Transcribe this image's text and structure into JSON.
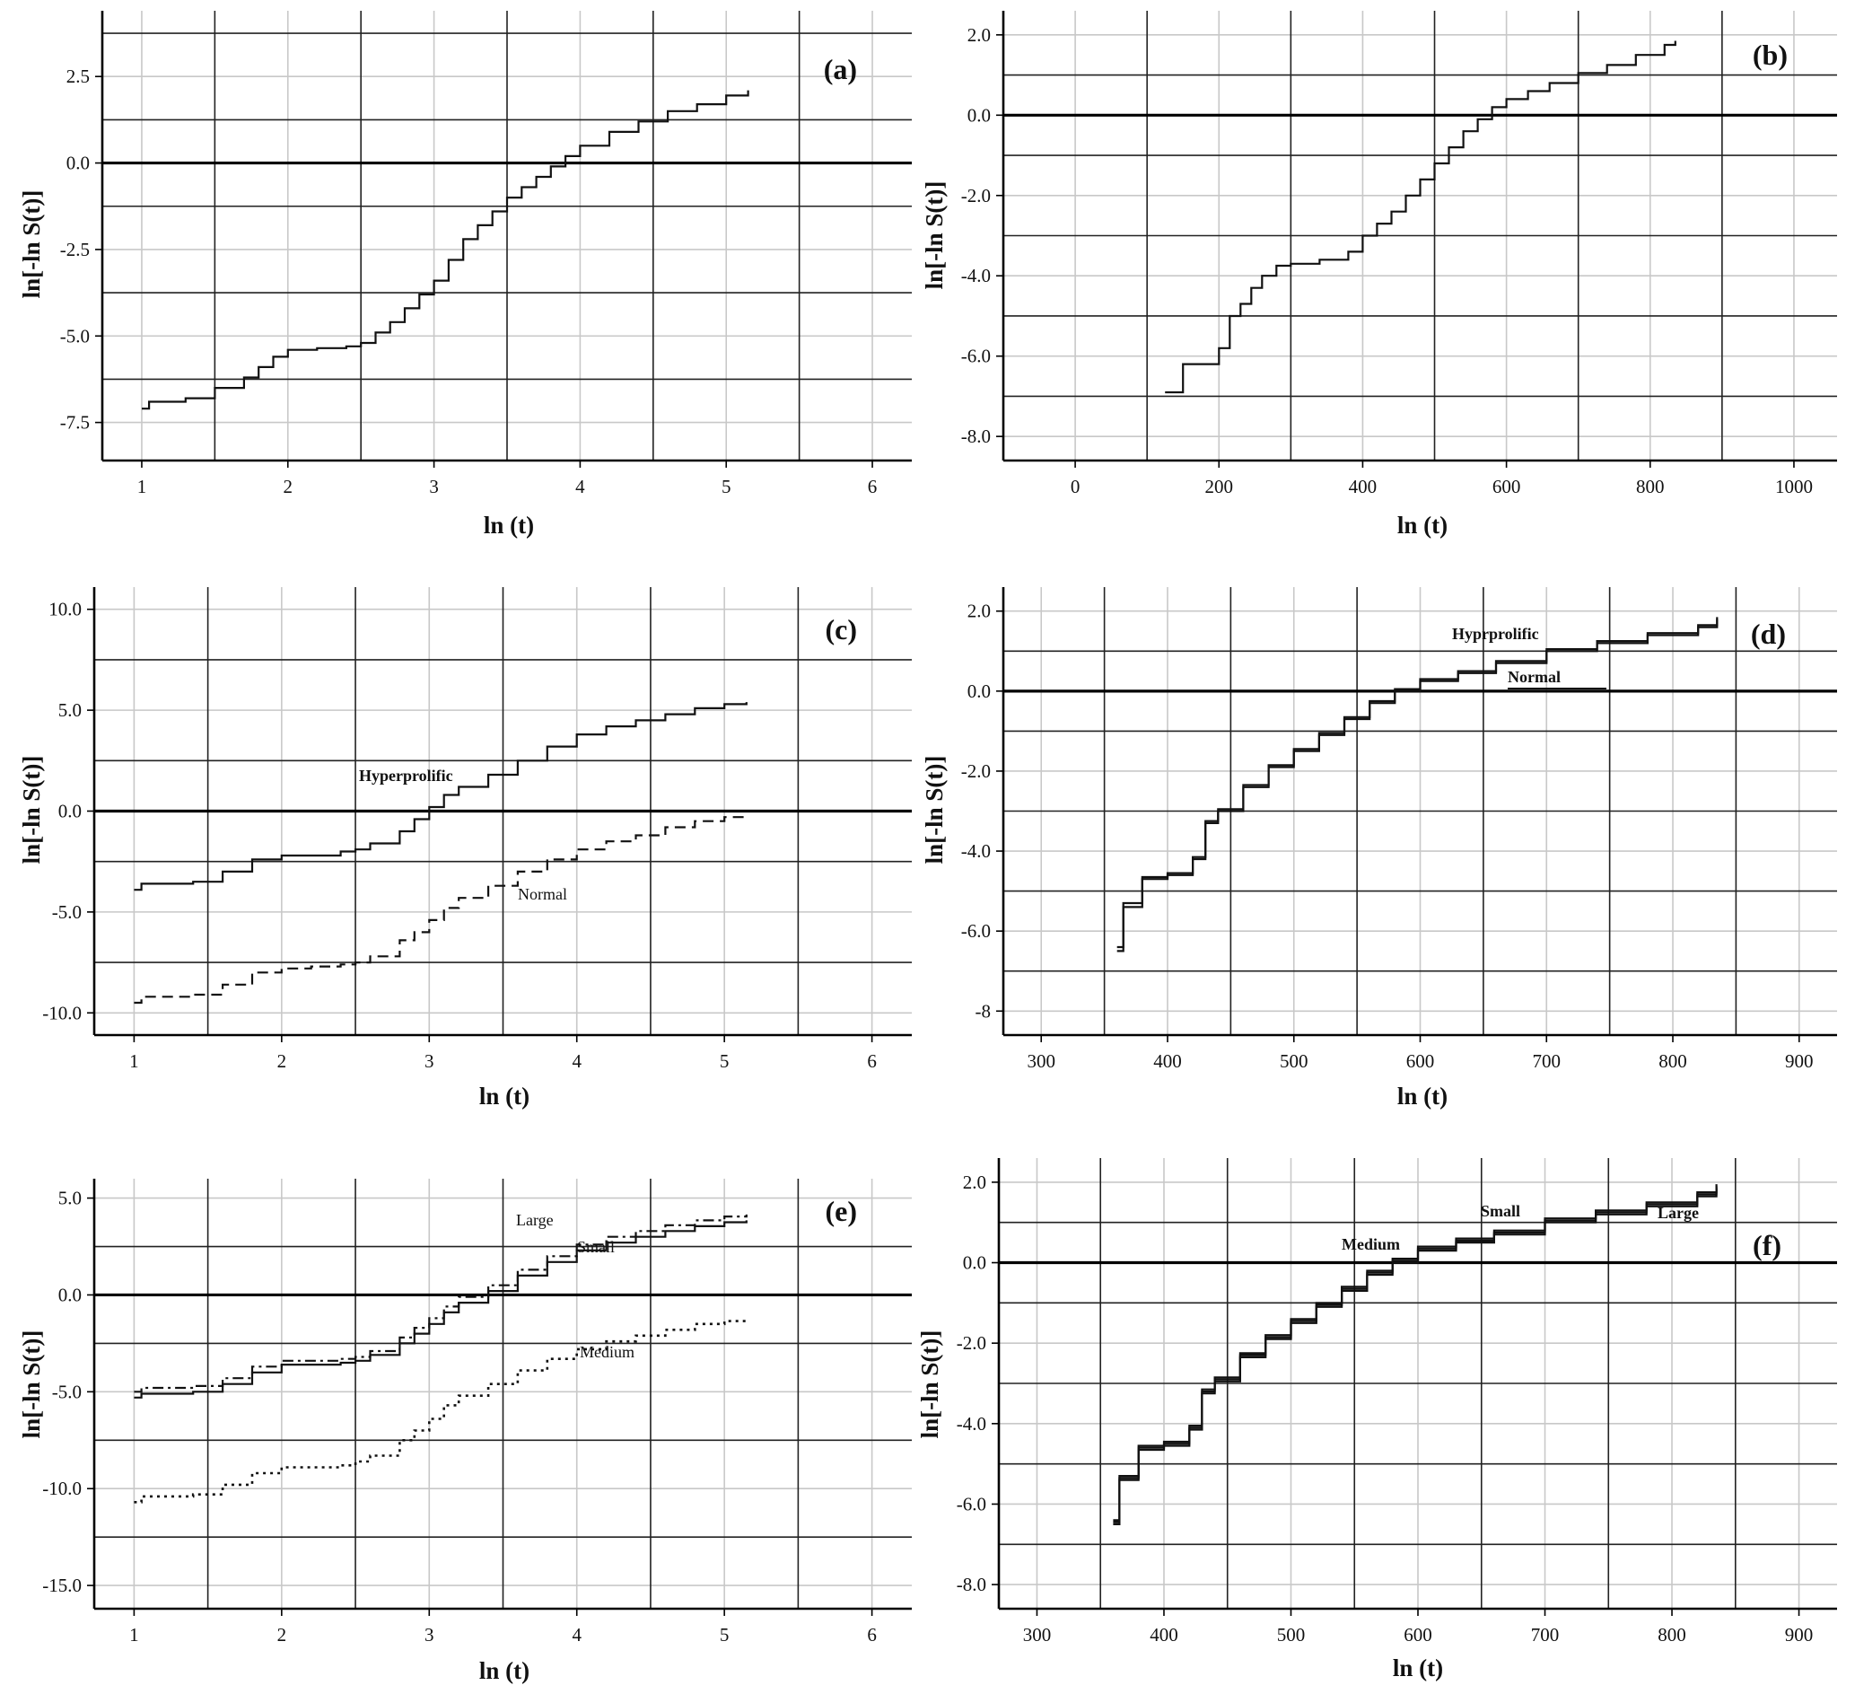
{
  "chart_data": [
    {
      "id": "a",
      "type": "line",
      "panel_label": "(a)",
      "xlabel": "ln (t)",
      "ylabel": "ln[-ln S(t)]",
      "xlim": [
        0.73,
        6.27
      ],
      "ylim": [
        -8.6,
        4.4
      ],
      "x_ticks": [
        1,
        2,
        3,
        4,
        5,
        6
      ],
      "y_ticks": [
        2.5,
        0.0,
        -2.5,
        -5.0,
        -7.5
      ],
      "y_tick_labels": [
        "2.5",
        "0.0",
        "-2.5",
        "-5.0",
        "-7.5"
      ],
      "x_grid_major": [
        1.5,
        2.5,
        3.5,
        4.5,
        5.5
      ],
      "x_grid_minor": [
        1,
        2,
        3,
        4,
        5,
        6
      ],
      "y_grid_major": [
        3.75,
        1.25,
        -1.25,
        -3.75,
        -6.25
      ],
      "y_grid_minor": [
        2.5,
        -2.5,
        -5.0,
        -7.5
      ],
      "zero_line": 0,
      "series": [
        {
          "style": "solid",
          "x": [
            1.0,
            1.05,
            1.3,
            1.5,
            1.7,
            1.8,
            1.9,
            2.0,
            2.2,
            2.4,
            2.5,
            2.6,
            2.7,
            2.8,
            2.9,
            3.0,
            3.1,
            3.2,
            3.3,
            3.4,
            3.5,
            3.6,
            3.7,
            3.8,
            3.9,
            4.0,
            4.2,
            4.4,
            4.6,
            4.8,
            5.0,
            5.15
          ],
          "y": [
            -7.1,
            -6.9,
            -6.8,
            -6.5,
            -6.2,
            -5.9,
            -5.6,
            -5.4,
            -5.35,
            -5.3,
            -5.2,
            -4.9,
            -4.6,
            -4.2,
            -3.8,
            -3.4,
            -2.8,
            -2.2,
            -1.8,
            -1.4,
            -1.0,
            -0.7,
            -0.4,
            -0.1,
            0.2,
            0.5,
            0.9,
            1.2,
            1.5,
            1.7,
            1.95,
            2.1
          ]
        }
      ]
    },
    {
      "id": "b",
      "type": "line",
      "panel_label": "(b)",
      "xlabel": "ln (t)",
      "ylabel": "ln[-ln S(t)]",
      "xlim": [
        -100,
        1060
      ],
      "ylim": [
        -8.6,
        2.6
      ],
      "x_ticks": [
        0,
        200,
        400,
        600,
        800,
        1000
      ],
      "y_ticks": [
        2.0,
        0.0,
        -2.0,
        -4.0,
        -6.0,
        -8.0
      ],
      "y_tick_labels": [
        "2.0",
        "0.0",
        "-2.0",
        "-4.0",
        "-6.0",
        "-8.0"
      ],
      "x_grid_major": [
        100,
        300,
        500,
        700,
        900
      ],
      "x_grid_minor": [
        0,
        200,
        400,
        600,
        800,
        1000
      ],
      "y_grid_major": [
        1.0,
        -1.0,
        -3.0,
        -5.0,
        -7.0
      ],
      "y_grid_minor": [
        2.0,
        -2.0,
        -4.0,
        -6.0,
        -8.0
      ],
      "zero_line": 0,
      "series": [
        {
          "style": "solid",
          "x": [
            125,
            150,
            170,
            200,
            215,
            230,
            245,
            260,
            280,
            300,
            340,
            380,
            400,
            420,
            440,
            460,
            480,
            500,
            520,
            540,
            560,
            580,
            600,
            630,
            660,
            700,
            740,
            780,
            820,
            835
          ],
          "y": [
            -6.9,
            -6.2,
            -6.2,
            -5.8,
            -5.0,
            -4.7,
            -4.3,
            -4.0,
            -3.75,
            -3.7,
            -3.6,
            -3.4,
            -3.0,
            -2.7,
            -2.4,
            -2.0,
            -1.6,
            -1.2,
            -0.8,
            -0.4,
            -0.1,
            0.2,
            0.4,
            0.6,
            0.8,
            1.05,
            1.25,
            1.5,
            1.75,
            1.85
          ]
        }
      ]
    },
    {
      "id": "c",
      "type": "line",
      "panel_label": "(c)",
      "xlabel": "ln (t)",
      "ylabel": "ln[-ln S(t)]",
      "xlim": [
        0.73,
        6.27
      ],
      "ylim": [
        -11.1,
        11.1
      ],
      "x_ticks": [
        1,
        2,
        3,
        4,
        5,
        6
      ],
      "y_ticks": [
        10.0,
        5.0,
        0.0,
        -5.0,
        -10.0
      ],
      "y_tick_labels": [
        "10.0",
        "5.0",
        "0.0",
        "-5.0",
        "-10.0"
      ],
      "x_grid_major": [
        1.5,
        2.5,
        3.5,
        4.5,
        5.5
      ],
      "x_grid_minor": [
        1,
        2,
        3,
        4,
        5,
        6
      ],
      "y_grid_major": [
        7.5,
        2.5,
        -2.5,
        -7.5
      ],
      "y_grid_minor": [
        10,
        5,
        -5,
        -10
      ],
      "zero_line": 0,
      "series": [
        {
          "name": "Hyperprolific",
          "style": "solid",
          "x": [
            1.0,
            1.05,
            1.4,
            1.6,
            1.8,
            2.0,
            2.2,
            2.4,
            2.5,
            2.6,
            2.8,
            2.9,
            3.0,
            3.1,
            3.2,
            3.4,
            3.6,
            3.8,
            4.0,
            4.2,
            4.4,
            4.6,
            4.8,
            5.0,
            5.15
          ],
          "y": [
            -3.9,
            -3.6,
            -3.5,
            -3.0,
            -2.4,
            -2.2,
            -2.2,
            -2.0,
            -1.9,
            -1.6,
            -1.0,
            -0.4,
            0.2,
            0.8,
            1.2,
            1.8,
            2.5,
            3.2,
            3.8,
            4.2,
            4.5,
            4.8,
            5.1,
            5.3,
            5.4
          ]
        },
        {
          "name": "Normal",
          "style": "dashed",
          "x": [
            1.0,
            1.05,
            1.4,
            1.6,
            1.8,
            2.0,
            2.2,
            2.4,
            2.5,
            2.6,
            2.8,
            2.9,
            3.0,
            3.1,
            3.2,
            3.4,
            3.6,
            3.8,
            4.0,
            4.2,
            4.4,
            4.6,
            4.8,
            5.0,
            5.15
          ],
          "y": [
            -9.5,
            -9.2,
            -9.1,
            -8.6,
            -8.0,
            -7.8,
            -7.7,
            -7.6,
            -7.5,
            -7.2,
            -6.4,
            -6.0,
            -5.4,
            -4.8,
            -4.3,
            -3.7,
            -3.0,
            -2.4,
            -1.9,
            -1.5,
            -1.2,
            -0.8,
            -0.5,
            -0.3,
            -0.2
          ]
        }
      ],
      "annotations": [
        "Hyperprolific",
        "Normal"
      ]
    },
    {
      "id": "d",
      "type": "line",
      "panel_label": "(d)",
      "xlabel": "ln (t)",
      "ylabel": "ln[-ln S(t)]",
      "xlim": [
        270,
        930
      ],
      "ylim": [
        -8.6,
        2.6
      ],
      "x_ticks": [
        300,
        400,
        500,
        600,
        700,
        800,
        900
      ],
      "y_ticks": [
        2.0,
        0.0,
        -2.0,
        -4.0,
        -6.0,
        -8.0
      ],
      "y_tick_labels": [
        "2.0",
        "0.0",
        "-2.0",
        "-4.0",
        "-6.0",
        "-8"
      ],
      "x_grid_major": [
        350,
        450,
        550,
        650,
        750,
        850
      ],
      "x_grid_minor": [
        300,
        400,
        500,
        600,
        700,
        800,
        900
      ],
      "y_grid_major": [
        1.0,
        -1.0,
        -3.0,
        -5.0,
        -7.0
      ],
      "y_grid_minor": [
        2.0,
        -2.0,
        -4.0,
        -6.0,
        -8.0
      ],
      "zero_line": 0,
      "series": [
        {
          "name": "Hyprprolific",
          "style": "solid",
          "x": [
            360,
            365,
            380,
            400,
            420,
            430,
            440,
            460,
            480,
            500,
            520,
            540,
            560,
            580,
            600,
            630,
            660,
            700,
            740,
            780,
            820,
            835
          ],
          "y": [
            -6.5,
            -5.4,
            -4.7,
            -4.6,
            -4.2,
            -3.3,
            -3.0,
            -2.4,
            -1.9,
            -1.5,
            -1.1,
            -0.7,
            -0.3,
            0.0,
            0.25,
            0.45,
            0.7,
            1.0,
            1.2,
            1.4,
            1.6,
            1.8
          ]
        },
        {
          "name": "Normal",
          "style": "solid",
          "x": [
            360,
            365,
            380,
            400,
            420,
            430,
            440,
            460,
            480,
            500,
            520,
            540,
            560,
            580,
            600,
            630,
            660,
            700,
            740,
            780,
            820,
            835
          ],
          "y": [
            -6.4,
            -5.3,
            -4.65,
            -4.55,
            -4.15,
            -3.25,
            -2.95,
            -2.35,
            -1.85,
            -1.45,
            -1.05,
            -0.65,
            -0.25,
            0.05,
            0.3,
            0.5,
            0.75,
            1.05,
            1.25,
            1.45,
            1.65,
            1.85
          ]
        }
      ],
      "annotations": [
        "Hyprprolific",
        "Normal"
      ]
    },
    {
      "id": "e",
      "type": "line",
      "panel_label": "(e)",
      "xlabel": "ln (t)",
      "ylabel": "ln[-ln S(t)]",
      "xlim": [
        0.73,
        6.27
      ],
      "ylim": [
        -16.2,
        6.0
      ],
      "x_ticks": [
        1,
        2,
        3,
        4,
        5,
        6
      ],
      "y_ticks": [
        5.0,
        0.0,
        -5.0,
        -10.0,
        -15.0
      ],
      "y_tick_labels": [
        "5.0",
        "0.0",
        "-5.0",
        "-10.0",
        "-15.0"
      ],
      "x_grid_major": [
        1.5,
        2.5,
        3.5,
        4.5,
        5.5
      ],
      "x_grid_minor": [
        1,
        2,
        3,
        4,
        5,
        6
      ],
      "y_grid_major": [
        2.5,
        -2.5,
        -7.5,
        -12.5
      ],
      "y_grid_minor": [
        5,
        -5,
        -10,
        -15
      ],
      "zero_line": 0,
      "series": [
        {
          "name": "Large",
          "style": "dashdot",
          "x": [
            1.0,
            1.05,
            1.4,
            1.6,
            1.8,
            2.0,
            2.2,
            2.4,
            2.5,
            2.6,
            2.8,
            2.9,
            3.0,
            3.1,
            3.2,
            3.4,
            3.6,
            3.8,
            4.0,
            4.2,
            4.4,
            4.6,
            4.8,
            5.0,
            5.15
          ],
          "y": [
            -5.0,
            -4.8,
            -4.7,
            -4.3,
            -3.7,
            -3.4,
            -3.4,
            -3.3,
            -3.2,
            -2.9,
            -2.2,
            -1.7,
            -1.2,
            -0.6,
            -0.1,
            0.5,
            1.3,
            2.0,
            2.6,
            3.0,
            3.3,
            3.6,
            3.85,
            4.05,
            4.15
          ]
        },
        {
          "name": "Small",
          "style": "solid",
          "x": [
            1.0,
            1.05,
            1.4,
            1.6,
            1.8,
            2.0,
            2.2,
            2.4,
            2.5,
            2.6,
            2.8,
            2.9,
            3.0,
            3.1,
            3.2,
            3.4,
            3.6,
            3.8,
            4.0,
            4.2,
            4.4,
            4.6,
            4.8,
            5.0,
            5.15
          ],
          "y": [
            -5.3,
            -5.1,
            -5.0,
            -4.6,
            -4.0,
            -3.6,
            -3.6,
            -3.5,
            -3.4,
            -3.1,
            -2.5,
            -2.0,
            -1.5,
            -0.9,
            -0.4,
            0.2,
            1.0,
            1.7,
            2.3,
            2.7,
            3.0,
            3.3,
            3.55,
            3.75,
            3.85
          ]
        },
        {
          "name": "Medium",
          "style": "dotted",
          "x": [
            1.0,
            1.05,
            1.4,
            1.6,
            1.8,
            2.0,
            2.2,
            2.4,
            2.5,
            2.6,
            2.8,
            2.9,
            3.0,
            3.1,
            3.2,
            3.4,
            3.6,
            3.8,
            4.0,
            4.2,
            4.4,
            4.6,
            4.8,
            5.0,
            5.15
          ],
          "y": [
            -10.7,
            -10.4,
            -10.3,
            -9.8,
            -9.2,
            -8.9,
            -8.9,
            -8.8,
            -8.6,
            -8.3,
            -7.5,
            -7.0,
            -6.4,
            -5.7,
            -5.2,
            -4.6,
            -3.9,
            -3.3,
            -2.8,
            -2.4,
            -2.1,
            -1.8,
            -1.5,
            -1.35,
            -1.3
          ]
        }
      ],
      "annotations": [
        "Large",
        "Small",
        "Medium"
      ]
    },
    {
      "id": "f",
      "type": "line",
      "panel_label": "(f)",
      "xlabel": "ln (t)",
      "ylabel": "ln[-ln S(t)]",
      "xlim": [
        270,
        930
      ],
      "ylim": [
        -8.6,
        2.6
      ],
      "x_ticks": [
        300,
        400,
        500,
        600,
        700,
        800,
        900
      ],
      "y_ticks": [
        2.0,
        0.0,
        -2.0,
        -4.0,
        -6.0,
        -8.0
      ],
      "y_tick_labels": [
        "2.0",
        "0.0",
        "-2.0",
        "-4.0",
        "-6.0",
        "-8.0"
      ],
      "x_grid_major": [
        350,
        450,
        550,
        650,
        750,
        850
      ],
      "x_grid_minor": [
        300,
        400,
        500,
        600,
        700,
        800,
        900
      ],
      "y_grid_major": [
        1.0,
        -1.0,
        -3.0,
        -5.0,
        -7.0
      ],
      "y_grid_minor": [
        2.0,
        -2.0,
        -4.0,
        -6.0,
        -8.0
      ],
      "zero_line": 0,
      "series": [
        {
          "name": "Small",
          "style": "solid",
          "x": [
            360,
            365,
            380,
            400,
            420,
            430,
            440,
            460,
            480,
            500,
            520,
            540,
            560,
            580,
            600,
            630,
            660,
            700,
            740,
            780,
            820,
            835
          ],
          "y": [
            -6.5,
            -5.4,
            -4.65,
            -4.55,
            -4.15,
            -3.25,
            -2.95,
            -2.35,
            -1.9,
            -1.5,
            -1.1,
            -0.7,
            -0.3,
            0.0,
            0.3,
            0.5,
            0.7,
            1.0,
            1.2,
            1.4,
            1.65,
            1.85
          ]
        },
        {
          "name": "Medium",
          "style": "solid",
          "x": [
            360,
            365,
            380,
            400,
            420,
            430,
            440,
            460,
            480,
            500,
            520,
            540,
            560,
            580,
            600,
            630,
            660,
            700,
            740,
            780,
            820,
            835
          ],
          "y": [
            -6.45,
            -5.35,
            -4.6,
            -4.5,
            -4.1,
            -3.2,
            -2.9,
            -2.3,
            -1.85,
            -1.45,
            -1.05,
            -0.65,
            -0.25,
            0.05,
            0.35,
            0.55,
            0.75,
            1.05,
            1.25,
            1.45,
            1.7,
            1.9
          ]
        },
        {
          "name": "Large",
          "style": "solid",
          "x": [
            360,
            365,
            380,
            400,
            420,
            430,
            440,
            460,
            480,
            500,
            520,
            540,
            560,
            580,
            600,
            630,
            660,
            700,
            740,
            780,
            820,
            835
          ],
          "y": [
            -6.4,
            -5.3,
            -4.55,
            -4.45,
            -4.05,
            -3.15,
            -2.85,
            -2.25,
            -1.8,
            -1.4,
            -1.0,
            -0.6,
            -0.2,
            0.1,
            0.4,
            0.6,
            0.8,
            1.1,
            1.3,
            1.5,
            1.75,
            1.95
          ]
        }
      ],
      "annotations": [
        "Medium",
        "Small",
        "Large"
      ]
    }
  ]
}
